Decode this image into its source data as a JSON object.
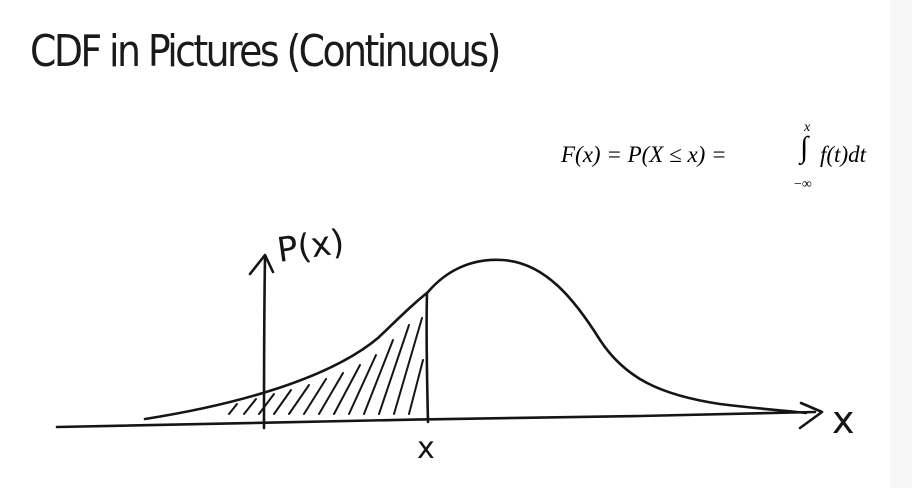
{
  "slide": {
    "title": "CDF in Pictures (Continuous)"
  },
  "formula": {
    "lhs": "F(x) = P(X ≤ x) = ",
    "integral_symbol": "∫",
    "upper_limit": "x",
    "lower_limit": "−∞",
    "integrand": "f(t)dt"
  },
  "sketch": {
    "y_axis_label": "P(x)",
    "x_axis_label": "x",
    "marker_label": "x"
  }
}
